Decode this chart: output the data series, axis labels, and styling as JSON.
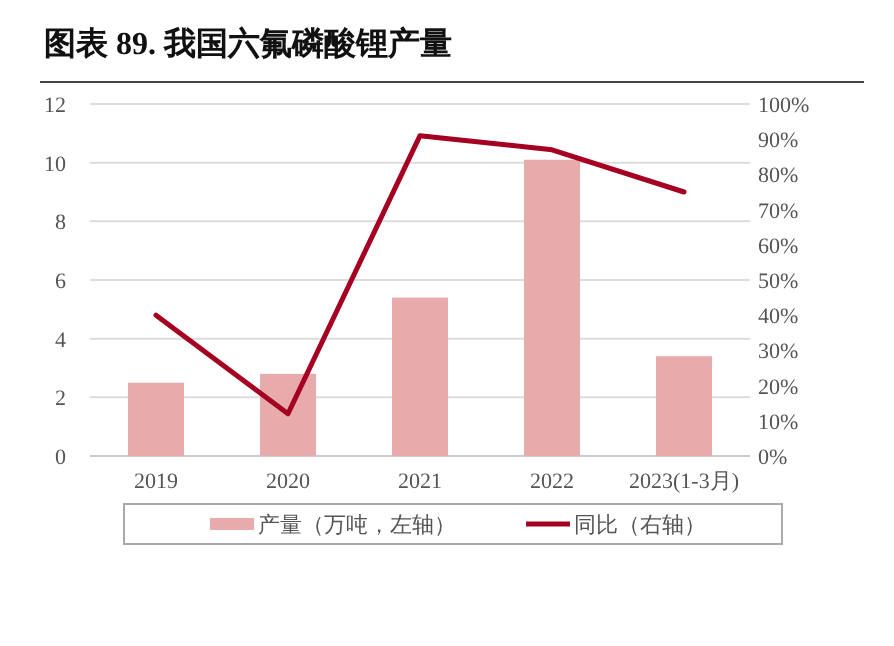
{
  "chart_data": {
    "type": "bar",
    "title": "图表 89. 我国六氟磷酸锂产量",
    "categories": [
      "2019",
      "2020",
      "2021",
      "2022",
      "2023(1-3月)"
    ],
    "series": [
      {
        "name": "产量（万吨，左轴）",
        "color": "#e8aaaa",
        "values": [
          2.5,
          2.8,
          5.4,
          10.1,
          3.4
        ]
      },
      {
        "name": "同比（右轴）",
        "type": "line",
        "axis": "y2",
        "color": "#a50021",
        "values": [
          40,
          12,
          91,
          87,
          75
        ]
      }
    ],
    "ylim": [
      0,
      12
    ],
    "yticks": [
      0,
      2,
      4,
      6,
      8,
      10,
      12
    ],
    "y2lim": [
      0,
      100
    ],
    "y2ticks": [
      {
        "value": 0,
        "label": "0%"
      },
      {
        "value": 10,
        "label": "10%"
      },
      {
        "value": 20,
        "label": "20%"
      },
      {
        "value": 30,
        "label": "30%"
      },
      {
        "value": 40,
        "label": "40%"
      },
      {
        "value": 50,
        "label": "50%"
      },
      {
        "value": 60,
        "label": "60%"
      },
      {
        "value": 70,
        "label": "70%"
      },
      {
        "value": 80,
        "label": "80%"
      },
      {
        "value": 90,
        "label": "90%"
      },
      {
        "value": 100,
        "label": "100%"
      }
    ],
    "grid": "y",
    "legend": "bottom"
  }
}
